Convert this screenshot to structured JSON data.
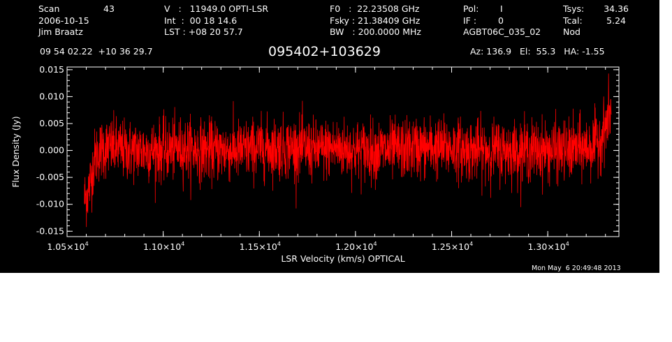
{
  "header": {
    "col1": {
      "scan_label": "Scan",
      "scan_value": "43",
      "date": "2006-10-15",
      "observer": "Jim Braatz"
    },
    "col2": {
      "line1": "V   :   11949.0 OPTI-LSR",
      "line2": "Int  :  00 18 14.6",
      "line3": "LST : +08 20 57.7"
    },
    "col3": {
      "line1": "F0   :  22.23508 GHz",
      "line2": "Fsky : 21.38409 GHz",
      "line3": "BW   : 200.0000 MHz"
    },
    "col4": {
      "pol_label": "Pol:",
      "pol_value": "I",
      "if_label": "IF :",
      "if_value": "0",
      "project": "AGBT06C_035_02"
    },
    "col5": {
      "tsys_label": "Tsys:",
      "tsys_value": "34.36",
      "tcal_label": "Tcal:",
      "tcal_value": "5.24",
      "mode": "Nod"
    },
    "coords": "09 54 02.22  +10 36 29.7",
    "source": "095402+103629",
    "pointing": "Az: 136.9   El:  55.3   HA: -1.55",
    "timestamp": "Mon May  6 20:49:48 2013"
  },
  "chart_data": {
    "type": "line",
    "title": "095402+103629",
    "xlabel": "LSR Velocity (km/s) OPTICAL",
    "ylabel": "Flux Density (Jy)",
    "xlim": [
      10500,
      13370
    ],
    "ylim": [
      -0.016,
      0.0155
    ],
    "x_ticks": [
      {
        "value": 10500,
        "mantissa": "1.05",
        "exp": "4"
      },
      {
        "value": 11000,
        "mantissa": "1.10",
        "exp": "4"
      },
      {
        "value": 11500,
        "mantissa": "1.15",
        "exp": "4"
      },
      {
        "value": 12000,
        "mantissa": "1.20",
        "exp": "4"
      },
      {
        "value": 12500,
        "mantissa": "1.25",
        "exp": "4"
      },
      {
        "value": 13000,
        "mantissa": "1.30",
        "exp": "4"
      }
    ],
    "x_tick_times_symbol": "×10",
    "y_ticks": [
      {
        "value": 0.015,
        "label": "0.015"
      },
      {
        "value": 0.01,
        "label": "0.010"
      },
      {
        "value": 0.005,
        "label": "0.005"
      },
      {
        "value": 0.0,
        "label": "0.000"
      },
      {
        "value": -0.005,
        "label": "-0.005"
      },
      {
        "value": -0.01,
        "label": "-0.010"
      },
      {
        "value": -0.015,
        "label": "-0.015"
      }
    ],
    "series": [
      {
        "color": "#ff0000",
        "x": [
          10590,
          10600,
          10610,
          10620,
          10630,
          10640,
          10650,
          10670,
          10700,
          10750,
          10800,
          10900,
          11000,
          11100,
          11200,
          11300,
          11400,
          11500,
          11600,
          11700,
          11800,
          11900,
          12000,
          12100,
          12200,
          12300,
          12400,
          12500,
          12600,
          12700,
          12800,
          12900,
          13000,
          13100,
          13200,
          13240,
          13270,
          13290,
          13310,
          13330
        ],
        "y": [
          -0.009,
          -0.0085,
          -0.0075,
          -0.006,
          -0.004,
          -0.002,
          -0.001,
          0.0,
          0.0005,
          0.0005,
          0.0,
          0.0,
          0.0,
          0.0005,
          0.0,
          0.0,
          0.0,
          0.0005,
          0.0005,
          0.0005,
          0.0,
          0.0005,
          0.0,
          0.0,
          0.0,
          0.0005,
          0.0005,
          0.0005,
          0.0,
          0.0,
          0.0,
          0.0,
          0.0,
          0.0,
          0.0005,
          0.001,
          0.002,
          0.0035,
          0.0055,
          0.0075
        ],
        "noise_rms": 0.0028
      }
    ]
  }
}
